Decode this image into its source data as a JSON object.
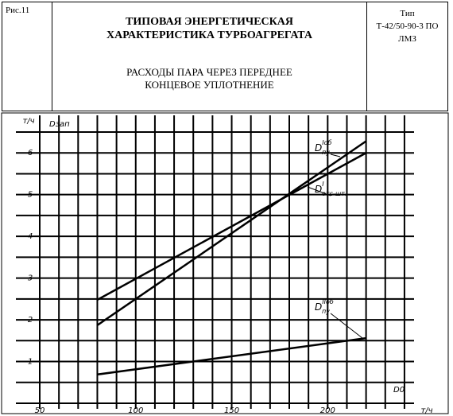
{
  "header": {
    "figure": "Рис.11",
    "title": "ТИПОВАЯ ЭНЕРГЕТИЧЕСКАЯ ХАРАКТЕРИСТИКА ТУРБОАГРЕГАТА",
    "subtitle": "РАСХОДЫ ПАРА ЧЕРЕЗ ПЕРЕДНЕЕ КОНЦЕВОЕ УПЛОТНЕНИЕ",
    "type_label": "Тип",
    "type_value": "Т-42/50-90-3 ПО ЛМЗ"
  },
  "chart_data": {
    "type": "line",
    "y_label": "Dзап",
    "x_label": "D0",
    "y_unit": "т/ч",
    "x_unit": "т/ч",
    "xlim": [
      50,
      245
    ],
    "ylim": [
      0,
      6.9
    ],
    "xticks": [
      50,
      100,
      150,
      200
    ],
    "yticks": [
      1,
      2,
      3,
      4,
      5,
      6
    ],
    "xgrid": [
      60,
      70,
      80,
      90,
      100,
      110,
      120,
      130,
      140,
      150,
      160,
      170,
      180,
      190,
      200,
      210,
      220,
      230,
      240
    ],
    "ygrid": [
      0.5,
      1,
      1.5,
      2,
      2.5,
      3,
      3.5,
      4,
      4.5,
      5,
      5.5,
      6,
      6.5
    ],
    "grid": true,
    "x": [
      80,
      220
    ],
    "series": [
      {
        "name": "D",
        "name_sup": "Iоб",
        "name_sub": "пу",
        "color": "#000",
        "values": [
          1.87,
          6.28
        ]
      },
      {
        "name": "D",
        "name_sup": "I",
        "name_sub": "отс-шт.",
        "color": "#000",
        "values": [
          2.48,
          6.0
        ]
      },
      {
        "name": "D",
        "name_sup": "IIоб",
        "name_sub": "пу",
        "color": "#000",
        "values": [
          0.69,
          1.56
        ]
      }
    ]
  }
}
